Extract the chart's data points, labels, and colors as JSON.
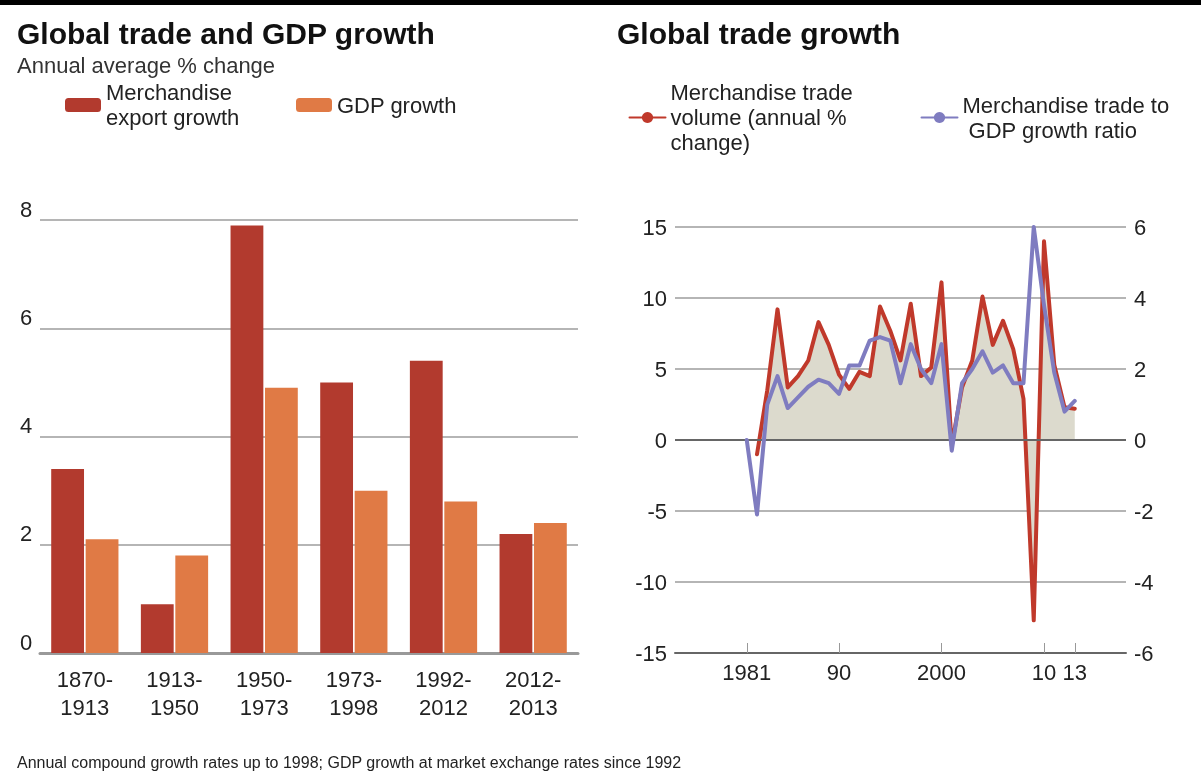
{
  "chart_data": [
    {
      "type": "bar",
      "title": "Global trade and GDP growth",
      "subtitle": "Annual average % change",
      "categories": [
        "1870-1913",
        "1913-1950",
        "1950-1973",
        "1973-1998",
        "1992-2012",
        "2012-2013"
      ],
      "series": [
        {
          "name": "Merchandise export growth",
          "color": "#b23a2e",
          "values": [
            3.4,
            0.9,
            7.9,
            5.0,
            5.4,
            2.2
          ]
        },
        {
          "name": "GDP growth",
          "color": "#e07a45",
          "values": [
            2.1,
            1.8,
            4.9,
            3.0,
            2.8,
            2.4
          ]
        }
      ],
      "ylim": [
        0,
        8
      ],
      "yticks": [
        0,
        2,
        4,
        6,
        8
      ],
      "grid": "y",
      "legend": "top left",
      "annotations": [
        "Annual compound growth rates up to 1998; GDP growth at market exchange rates since 1992"
      ]
    },
    {
      "type": "line",
      "title": "Global trade growth",
      "x": [
        1981,
        1982,
        1983,
        1984,
        1985,
        1986,
        1987,
        1988,
        1989,
        1990,
        1991,
        1992,
        1993,
        1994,
        1995,
        1996,
        1997,
        1998,
        1999,
        2000,
        2001,
        2002,
        2003,
        2004,
        2005,
        2006,
        2007,
        2008,
        2009,
        2010,
        2011,
        2012,
        2013
      ],
      "series": [
        {
          "name": "Merchandise trade volume (annual % change)",
          "type": "area",
          "color": "#c0392b",
          "values": [
            null,
            -1.0,
            3.5,
            9.2,
            3.7,
            4.5,
            5.6,
            8.3,
            6.7,
            4.6,
            3.6,
            4.8,
            4.5,
            9.4,
            7.7,
            5.6,
            9.6,
            4.5,
            5.1,
            11.1,
            -0.4,
            3.7,
            5.6,
            10.1,
            6.7,
            8.4,
            6.4,
            2.9,
            -12.7,
            14.0,
            5.3,
            2.3,
            2.2
          ]
        },
        {
          "name": "Merchandise trade to GDP growth ratio",
          "type": "line",
          "axis": "y2",
          "color": "#7f7cc0",
          "values": [
            0.0,
            -2.1,
            1.0,
            1.8,
            0.9,
            1.2,
            1.5,
            1.7,
            1.6,
            1.3,
            2.1,
            2.1,
            2.8,
            2.9,
            2.8,
            1.6,
            2.7,
            2.0,
            1.6,
            2.7,
            -0.3,
            1.6,
            2.0,
            2.5,
            1.9,
            2.1,
            1.6,
            1.6,
            6.0,
            3.8,
            1.9,
            0.8,
            1.1
          ]
        }
      ],
      "xlim": [
        1974,
        2018
      ],
      "xticks": [
        {
          "value": 1981,
          "label": "1981"
        },
        {
          "value": 1990,
          "label": "90"
        },
        {
          "value": 2000,
          "label": "2000"
        },
        {
          "value": 2010,
          "label": "10"
        },
        {
          "value": 2013,
          "label": "13"
        }
      ],
      "ylim": [
        -15,
        15
      ],
      "yticks": [
        -15,
        -10,
        -5,
        0,
        5,
        10,
        15
      ],
      "y2lim": [
        -6,
        6
      ],
      "y2ticks": [
        -6,
        -4,
        -2,
        0,
        2,
        4,
        6
      ],
      "grid": "y",
      "legend": "top",
      "marker": "none",
      "line_style": "solid"
    }
  ]
}
